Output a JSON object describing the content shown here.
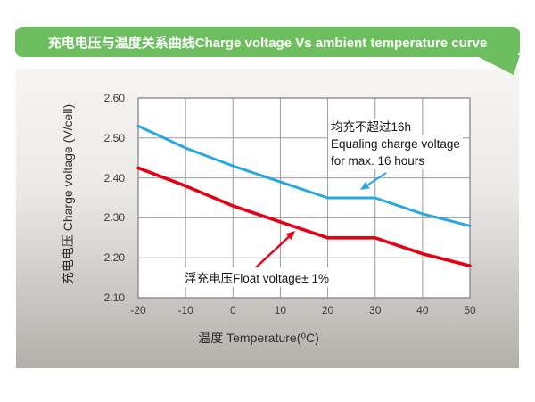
{
  "header": {
    "title": "充电电压与温度关系曲线Charge voltage Vs ambient temperature curve",
    "bg_color": "#6cbe5f"
  },
  "chart_data": {
    "type": "line",
    "title": "Charge voltage Vs ambient temperature curve",
    "x": [
      -20,
      -10,
      0,
      10,
      20,
      30,
      40,
      50
    ],
    "x_ticks": [
      "-20",
      "-10",
      "0",
      "10",
      "20",
      "30",
      "40",
      "50"
    ],
    "y_ticks": [
      "2.60",
      "2.50",
      "2.40",
      "2.30",
      "2.20",
      "2.10"
    ],
    "xlim": [
      -20,
      50
    ],
    "ylim": [
      2.1,
      2.6
    ],
    "xlabel": "温度 Temperature(⁰C)",
    "ylabel": "充电电压 Charge voltage (V/cell)",
    "grid": true,
    "legend_position": "none",
    "series": [
      {
        "name": "Equalizing charge voltage",
        "color": "#29a7e0",
        "width": 3,
        "values": [
          2.53,
          2.475,
          2.43,
          2.39,
          2.35,
          2.35,
          2.31,
          2.28
        ]
      },
      {
        "name": "Float voltage",
        "color": "#e60014",
        "width": 3.6,
        "values": [
          2.425,
          2.38,
          2.33,
          2.29,
          2.25,
          2.25,
          2.21,
          2.18
        ]
      }
    ],
    "annotations": {
      "equalizing": {
        "line1": "均充不超过16h",
        "line2": "Equaling charge voltage",
        "line3": "for max. 16 hours"
      },
      "float": {
        "label": "浮充电压Float voltage± 1%"
      }
    }
  }
}
